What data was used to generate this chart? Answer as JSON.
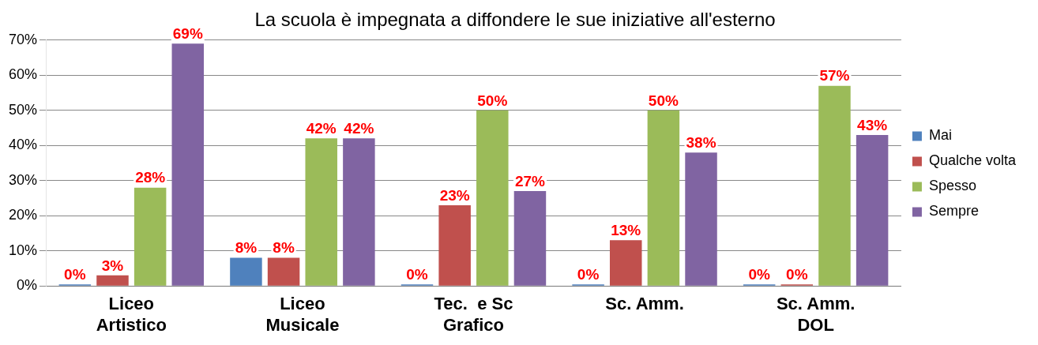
{
  "chart_data": {
    "type": "bar",
    "title": "La scuola è impegnata a diffondere le sue iniziative all'esterno",
    "categories": [
      "Liceo\nArtistico",
      "Liceo\nMusicale",
      "Tec.  e Sc\nGrafico",
      "Sc. Amm.",
      "Sc. Amm.\nDOL"
    ],
    "series": [
      {
        "name": "Mai",
        "color": "#4f81bd",
        "values": [
          0,
          8,
          0,
          0,
          0
        ],
        "value_labels": [
          "0%",
          "8%",
          "0%",
          "0%",
          "0%"
        ]
      },
      {
        "name": "Qualche volta",
        "color": "#c0504d",
        "values": [
          3,
          8,
          23,
          13,
          0
        ],
        "value_labels": [
          "3%",
          "8%",
          "23%",
          "13%",
          "0%"
        ]
      },
      {
        "name": "Spesso",
        "color": "#9bbb59",
        "values": [
          28,
          42,
          50,
          50,
          57
        ],
        "value_labels": [
          "28%",
          "42%",
          "50%",
          "50%",
          "57%"
        ]
      },
      {
        "name": "Sempre",
        "color": "#8064a2",
        "values": [
          69,
          42,
          27,
          38,
          43
        ],
        "value_labels": [
          "69%",
          "42%",
          "27%",
          "38%",
          "43%"
        ]
      }
    ],
    "ylim": [
      0,
      70
    ],
    "yticks": [
      {
        "value": 0,
        "label": "0%"
      },
      {
        "value": 10,
        "label": "10%"
      },
      {
        "value": 20,
        "label": "20%"
      },
      {
        "value": 30,
        "label": "30%"
      },
      {
        "value": 40,
        "label": "40%"
      },
      {
        "value": 50,
        "label": "50%"
      },
      {
        "value": 60,
        "label": "60%"
      },
      {
        "value": 70,
        "label": "70%"
      }
    ],
    "grid": "y",
    "legend": "right"
  }
}
